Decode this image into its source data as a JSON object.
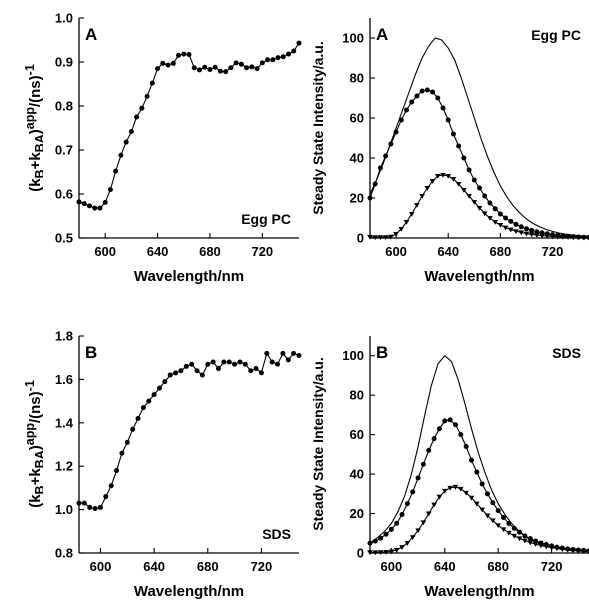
{
  "chart_data": [
    {
      "id": "k_eggpc",
      "type": "line",
      "panel_label": "A",
      "annotation": "Egg PC",
      "xlabel": "Wavelength/nm",
      "ylabel_html": "(k<sub>B</sub>+k<sub>BA</sub>)<sup>app</sup>/(ns)<sup>-1</sup>",
      "xlim": [
        580,
        748
      ],
      "ylim": [
        0.5,
        1.0
      ],
      "xticks": [
        600,
        640,
        680,
        720
      ],
      "yticks": [
        0.5,
        0.6,
        0.7,
        0.8,
        0.9,
        1.0
      ],
      "ytick_labels": [
        "0.5",
        "0.6",
        "0.7",
        "0.8",
        "0.9",
        "1.0"
      ],
      "series": [
        {
          "marker": "circle",
          "line": true,
          "x": [
            580,
            584,
            588,
            592,
            596,
            600,
            604,
            608,
            612,
            616,
            620,
            624,
            628,
            632,
            636,
            640,
            644,
            648,
            652,
            656,
            660,
            664,
            668,
            672,
            676,
            680,
            684,
            688,
            692,
            696,
            700,
            704,
            708,
            712,
            716,
            720,
            724,
            728,
            732,
            736,
            740,
            744,
            748
          ],
          "y": [
            0.582,
            0.578,
            0.573,
            0.568,
            0.568,
            0.581,
            0.61,
            0.652,
            0.688,
            0.718,
            0.742,
            0.775,
            0.795,
            0.822,
            0.852,
            0.885,
            0.897,
            0.893,
            0.897,
            0.915,
            0.918,
            0.917,
            0.887,
            0.882,
            0.888,
            0.883,
            0.888,
            0.879,
            0.878,
            0.887,
            0.898,
            0.895,
            0.887,
            0.889,
            0.885,
            0.898,
            0.905,
            0.905,
            0.91,
            0.912,
            0.918,
            0.925,
            0.943
          ]
        }
      ]
    },
    {
      "id": "ss_eggpc",
      "type": "line",
      "panel_label": "A",
      "annotation": "Egg PC",
      "xlabel": "Wavelength/nm",
      "ylabel": "Steady State Intensity/a.u.",
      "xlim": [
        580,
        748
      ],
      "ylim": [
        0,
        110
      ],
      "xticks": [
        600,
        640,
        680,
        720
      ],
      "yticks": [
        0,
        20,
        40,
        60,
        80,
        100
      ],
      "ytick_labels": [
        "0",
        "20",
        "40",
        "60",
        "80",
        "100"
      ],
      "series": [
        {
          "marker": "none",
          "x": [
            580,
            585,
            590,
            595,
            600,
            605,
            610,
            615,
            620,
            625,
            630,
            635,
            640,
            645,
            650,
            655,
            660,
            665,
            670,
            675,
            680,
            685,
            690,
            695,
            700,
            705,
            710,
            715,
            720,
            725,
            730,
            735,
            740,
            745,
            748
          ],
          "y": [
            22,
            29,
            37,
            46,
            55,
            64,
            73,
            82,
            90,
            96,
            100,
            99,
            95,
            89,
            80,
            70,
            60,
            50,
            41,
            33,
            26,
            20.5,
            16,
            12.5,
            9.5,
            7.3,
            5.6,
            4.3,
            3.3,
            2.5,
            1.9,
            1.5,
            1.1,
            0.8,
            0.6
          ]
        },
        {
          "marker": "circle",
          "x": [
            580,
            584,
            588,
            592,
            596,
            600,
            604,
            608,
            612,
            616,
            620,
            624,
            628,
            632,
            636,
            640,
            644,
            648,
            652,
            656,
            660,
            664,
            668,
            672,
            676,
            680,
            684,
            688,
            692,
            696,
            700,
            704,
            708,
            712,
            716,
            720,
            724,
            728,
            732,
            736,
            740,
            744,
            748
          ],
          "y": [
            20,
            27,
            35,
            41,
            47,
            53,
            59,
            64,
            68,
            71,
            73.5,
            74,
            73,
            70,
            65,
            59,
            52,
            46,
            40,
            34,
            29,
            25,
            21,
            17.5,
            14.6,
            12,
            10,
            8.3,
            6.8,
            5.6,
            4.6,
            3.8,
            3.1,
            2.6,
            2.1,
            1.7,
            1.4,
            1.1,
            0.9,
            0.7,
            0.5,
            0.4,
            0.3
          ]
        },
        {
          "marker": "triangle-down",
          "x": [
            580,
            584,
            588,
            592,
            596,
            600,
            604,
            608,
            612,
            616,
            620,
            624,
            628,
            632,
            636,
            640,
            644,
            648,
            652,
            656,
            660,
            664,
            668,
            672,
            676,
            680,
            684,
            688,
            692,
            696,
            700,
            704,
            708,
            712,
            716,
            720,
            724,
            728,
            732,
            736,
            740,
            744,
            748
          ],
          "y": [
            0.5,
            0.4,
            0.4,
            0.4,
            0.6,
            2,
            4.5,
            8,
            12,
            16.5,
            21,
            25,
            28.5,
            31,
            31.5,
            31,
            29.5,
            27,
            24,
            21,
            18,
            15,
            12.3,
            10,
            8,
            6.5,
            5.2,
            4.2,
            3.4,
            2.8,
            2.2,
            1.8,
            1.5,
            1.2,
            1,
            0.8,
            0.6,
            0.5,
            0.4,
            0.3,
            0.3,
            0.2,
            0.2
          ]
        }
      ]
    },
    {
      "id": "k_sds",
      "type": "line",
      "panel_label": "B",
      "annotation": "SDS",
      "xlabel": "Wavelength/nm",
      "ylabel_html": "(k<sub>B</sub>+k<sub>BA</sub>)<sup>app</sup>/(ns)<sup>-1</sup>",
      "xlim": [
        584,
        748
      ],
      "ylim": [
        0.8,
        1.8
      ],
      "xticks": [
        600,
        640,
        680,
        720
      ],
      "yticks": [
        0.8,
        1.0,
        1.2,
        1.4,
        1.6,
        1.8
      ],
      "ytick_labels": [
        "0.8",
        "1.0",
        "1.2",
        "1.4",
        "1.6",
        "1.8"
      ],
      "series": [
        {
          "marker": "circle",
          "line": true,
          "x": [
            584,
            588,
            592,
            596,
            600,
            604,
            608,
            612,
            616,
            620,
            624,
            628,
            632,
            636,
            640,
            644,
            648,
            652,
            656,
            660,
            664,
            668,
            672,
            676,
            680,
            684,
            688,
            692,
            696,
            700,
            704,
            708,
            712,
            716,
            720,
            724,
            728,
            732,
            736,
            740,
            744,
            748
          ],
          "y": [
            1.03,
            1.03,
            1.01,
            1.005,
            1.01,
            1.06,
            1.11,
            1.18,
            1.26,
            1.31,
            1.37,
            1.42,
            1.47,
            1.5,
            1.53,
            1.56,
            1.59,
            1.62,
            1.63,
            1.64,
            1.66,
            1.67,
            1.64,
            1.62,
            1.67,
            1.68,
            1.65,
            1.68,
            1.68,
            1.67,
            1.68,
            1.67,
            1.64,
            1.65,
            1.63,
            1.72,
            1.68,
            1.67,
            1.72,
            1.69,
            1.72,
            1.71
          ]
        }
      ]
    },
    {
      "id": "ss_sds",
      "type": "line",
      "panel_label": "B",
      "annotation": "SDS",
      "xlabel": "Wavelength/nm",
      "ylabel": "Steady State Intensity/a.u.",
      "xlim": [
        584,
        748
      ],
      "ylim": [
        0,
        110
      ],
      "xticks": [
        600,
        640,
        680,
        720
      ],
      "yticks": [
        0,
        20,
        40,
        60,
        80,
        100
      ],
      "ytick_labels": [
        "0",
        "20",
        "40",
        "60",
        "80",
        "100"
      ],
      "series": [
        {
          "marker": "none",
          "x": [
            584,
            590,
            595,
            600,
            605,
            610,
            615,
            620,
            625,
            630,
            635,
            640,
            645,
            650,
            655,
            660,
            665,
            670,
            675,
            680,
            685,
            690,
            695,
            700,
            705,
            710,
            715,
            720,
            725,
            730,
            735,
            740,
            745,
            748
          ],
          "y": [
            5,
            8,
            11,
            15,
            21,
            29,
            40,
            54,
            70,
            85,
            96,
            100,
            97,
            88,
            76,
            63,
            51,
            41,
            32,
            25,
            19.5,
            15,
            11.5,
            8.7,
            6.6,
            5,
            3.8,
            2.9,
            2.2,
            1.7,
            1.3,
            1,
            0.8,
            0.7
          ]
        },
        {
          "marker": "circle",
          "x": [
            584,
            588,
            592,
            596,
            600,
            604,
            608,
            612,
            616,
            620,
            624,
            628,
            632,
            636,
            640,
            644,
            648,
            652,
            656,
            660,
            664,
            668,
            672,
            676,
            680,
            684,
            688,
            692,
            696,
            700,
            704,
            708,
            712,
            716,
            720,
            724,
            728,
            732,
            736,
            740,
            744,
            748
          ],
          "y": [
            5,
            6,
            7.5,
            9.5,
            12,
            15,
            19.5,
            25,
            31,
            38,
            45,
            52,
            58,
            63,
            67,
            67.5,
            65,
            60,
            54,
            47,
            41,
            35,
            30,
            25.5,
            21.5,
            18,
            15,
            12.5,
            10.5,
            8.7,
            7.3,
            6.1,
            5.1,
            4.3,
            3.6,
            3,
            2.5,
            2.1,
            1.8,
            1.5,
            1.3,
            1.1
          ]
        },
        {
          "marker": "triangle-down",
          "x": [
            584,
            588,
            592,
            596,
            600,
            604,
            608,
            612,
            616,
            620,
            624,
            628,
            632,
            636,
            640,
            644,
            648,
            652,
            656,
            660,
            664,
            668,
            672,
            676,
            680,
            684,
            688,
            692,
            696,
            700,
            704,
            708,
            712,
            716,
            720,
            724,
            728,
            732,
            736,
            740,
            744,
            748
          ],
          "y": [
            0.3,
            0.3,
            0.4,
            0.5,
            0.8,
            1.5,
            3,
            5,
            8,
            11.5,
            15.5,
            20,
            24.5,
            28.5,
            31.5,
            33,
            33.5,
            32.5,
            30.5,
            28,
            25,
            22,
            19,
            16.5,
            14,
            12,
            10.2,
            8.7,
            7.4,
            6.3,
            5.3,
            4.5,
            3.8,
            3.2,
            2.7,
            2.3,
            1.9,
            1.6,
            1.4,
            1.2,
            1,
            0.9
          ]
        }
      ]
    }
  ]
}
